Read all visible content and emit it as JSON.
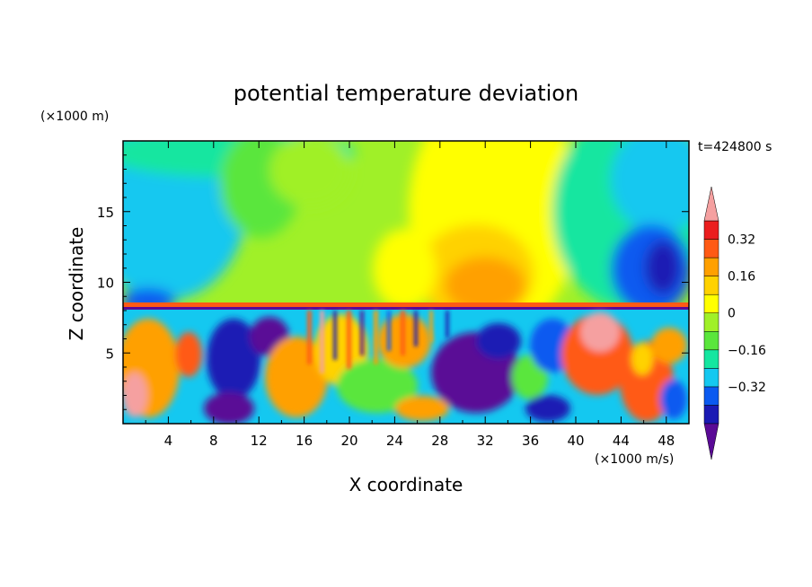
{
  "chart_data": {
    "type": "heatmap",
    "title": "potential temperature deviation",
    "time_label": "t=424800 s",
    "xlabel": "X coordinate",
    "ylabel": "Z coordinate",
    "x_unit": "(×1000 m/s)",
    "y_unit": "(×1000 m)",
    "xlim": [
      0,
      50
    ],
    "ylim": [
      0,
      20
    ],
    "x_ticks": [
      "4",
      "8",
      "12",
      "16",
      "20",
      "24",
      "28",
      "32",
      "36",
      "40",
      "44",
      "48"
    ],
    "y_ticks": [
      "5",
      "10",
      "15"
    ],
    "colorbar": {
      "levels": [
        -0.48,
        -0.4,
        -0.32,
        -0.24,
        -0.16,
        -0.08,
        0,
        0.08,
        0.16,
        0.24,
        0.32,
        0.4
      ],
      "colors": [
        "#5a0a96",
        "#1a1ab4",
        "#0a5af0",
        "#14c8f0",
        "#14e6a0",
        "#5ae63c",
        "#a0f028",
        "#ffff00",
        "#ffd200",
        "#ffa000",
        "#ff5a14",
        "#eb1e1e",
        "#f5a0a0"
      ],
      "tick_labels": [
        "0.32",
        "0.16",
        "0",
        "−0.16",
        "−0.32"
      ],
      "tick_values": [
        0.32,
        0.16,
        0,
        -0.16,
        -0.32
      ]
    }
  }
}
